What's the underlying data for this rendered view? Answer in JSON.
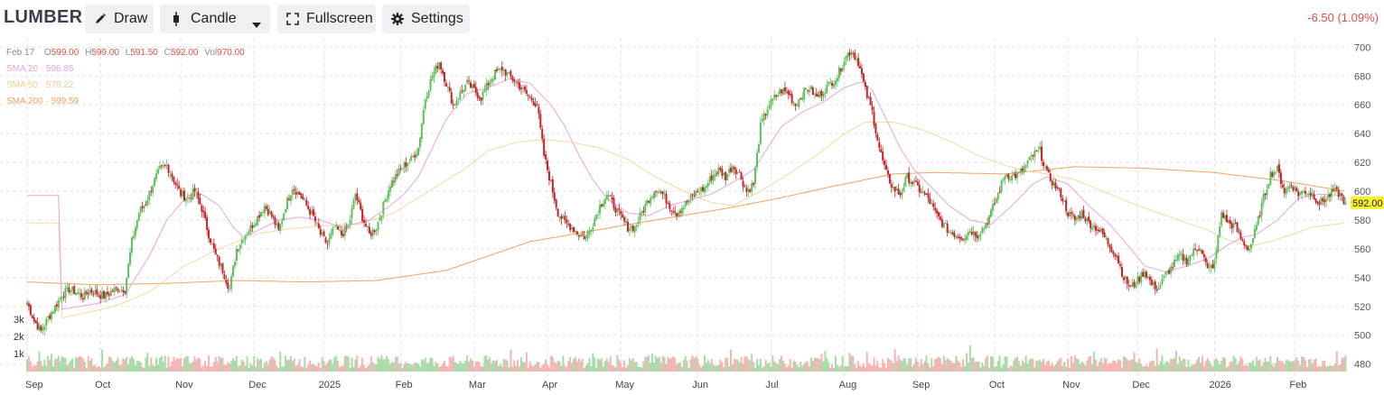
{
  "toolbar": {
    "symbol": "LUMBER",
    "draw_label": "Draw",
    "chart_type_label": "Candle",
    "fullscreen_label": "Fullscreen",
    "settings_label": "Settings",
    "change_text": "-6.50 (1.09%)"
  },
  "legend": {
    "date": "Feb 17",
    "o_key": "O",
    "o_val": "599.00",
    "h_key": "H",
    "h_val": "599.00",
    "l_key": "L",
    "l_val": "591.50",
    "c_key": "C",
    "c_val": "592.00",
    "vol_key": "Vol",
    "vol_val": "970.00",
    "sma20": "SMA 20 · 596.85",
    "sma50": "SMA 50 · 578.22",
    "sma200": "SMA 200 · 599.59"
  },
  "colors": {
    "up": "#5cc15c",
    "down": "#c3242c",
    "sma20": "#e8a6d8",
    "sma50": "#f3d9a0",
    "sma200": "#f4a261",
    "vol_up": "#a8dba8",
    "vol_down": "#f5b4b4",
    "last_price_bg": "#f7f12b"
  },
  "chart_data": {
    "type": "candlestick",
    "last_price_label": "592.00",
    "y_ticks": [
      480,
      500,
      520,
      540,
      560,
      580,
      600,
      620,
      640,
      660,
      680,
      700
    ],
    "ylim": [
      476,
      704
    ],
    "vol_ticks": [
      "1k",
      "2k",
      "3k"
    ],
    "x_tick_labels": [
      "Sep",
      "Oct",
      "Nov",
      "Dec",
      "2025",
      "Feb",
      "Mar",
      "Apr",
      "May",
      "Jun",
      "Jul",
      "Aug",
      "Sep",
      "Oct",
      "Nov",
      "Dec",
      "2026",
      "Feb"
    ],
    "grid": true,
    "series_legend": [
      "SMA 20",
      "SMA 50",
      "SMA 200"
    ],
    "close_anchors": [
      [
        0,
        523
      ],
      [
        4,
        510
      ],
      [
        8,
        503
      ],
      [
        12,
        512
      ],
      [
        16,
        520
      ],
      [
        20,
        528
      ],
      [
        24,
        532
      ],
      [
        28,
        530
      ],
      [
        32,
        527
      ],
      [
        36,
        531
      ],
      [
        40,
        529
      ],
      [
        44,
        527
      ],
      [
        48,
        530
      ],
      [
        52,
        533
      ],
      [
        56,
        532
      ],
      [
        60,
        565
      ],
      [
        64,
        585
      ],
      [
        68,
        592
      ],
      [
        72,
        605
      ],
      [
        76,
        615
      ],
      [
        80,
        618
      ],
      [
        84,
        608
      ],
      [
        88,
        598
      ],
      [
        92,
        595
      ],
      [
        96,
        600
      ],
      [
        100,
        588
      ],
      [
        104,
        570
      ],
      [
        108,
        555
      ],
      [
        112,
        545
      ],
      [
        116,
        532
      ],
      [
        120,
        560
      ],
      [
        124,
        568
      ],
      [
        128,
        575
      ],
      [
        132,
        582
      ],
      [
        136,
        590
      ],
      [
        140,
        583
      ],
      [
        144,
        572
      ],
      [
        148,
        590
      ],
      [
        152,
        603
      ],
      [
        156,
        598
      ],
      [
        160,
        590
      ],
      [
        164,
        582
      ],
      [
        168,
        570
      ],
      [
        172,
        563
      ],
      [
        176,
        575
      ],
      [
        180,
        570
      ],
      [
        184,
        575
      ],
      [
        188,
        598
      ],
      [
        192,
        582
      ],
      [
        196,
        570
      ],
      [
        200,
        575
      ],
      [
        204,
        590
      ],
      [
        208,
        605
      ],
      [
        212,
        612
      ],
      [
        216,
        618
      ],
      [
        220,
        622
      ],
      [
        224,
        630
      ],
      [
        228,
        665
      ],
      [
        232,
        680
      ],
      [
        236,
        690
      ],
      [
        240,
        675
      ],
      [
        244,
        660
      ],
      [
        248,
        668
      ],
      [
        252,
        675
      ],
      [
        256,
        670
      ],
      [
        260,
        665
      ],
      [
        264,
        675
      ],
      [
        268,
        682
      ],
      [
        272,
        685
      ],
      [
        276,
        680
      ],
      [
        280,
        676
      ],
      [
        284,
        670
      ],
      [
        288,
        665
      ],
      [
        292,
        660
      ],
      [
        296,
        625
      ],
      [
        300,
        605
      ],
      [
        304,
        585
      ],
      [
        308,
        578
      ],
      [
        312,
        575
      ],
      [
        316,
        570
      ],
      [
        320,
        568
      ],
      [
        324,
        578
      ],
      [
        328,
        590
      ],
      [
        332,
        598
      ],
      [
        336,
        590
      ],
      [
        340,
        582
      ],
      [
        344,
        575
      ],
      [
        348,
        575
      ],
      [
        352,
        585
      ],
      [
        356,
        595
      ],
      [
        360,
        602
      ],
      [
        364,
        598
      ],
      [
        368,
        590
      ],
      [
        372,
        585
      ],
      [
        376,
        590
      ],
      [
        380,
        595
      ],
      [
        384,
        600
      ],
      [
        388,
        602
      ],
      [
        392,
        610
      ],
      [
        396,
        615
      ],
      [
        400,
        610
      ],
      [
        404,
        618
      ],
      [
        408,
        612
      ],
      [
        412,
        600
      ],
      [
        416,
        605
      ],
      [
        420,
        645
      ],
      [
        424,
        658
      ],
      [
        428,
        665
      ],
      [
        432,
        670
      ],
      [
        436,
        668
      ],
      [
        440,
        660
      ],
      [
        444,
        668
      ],
      [
        448,
        672
      ],
      [
        452,
        665
      ],
      [
        456,
        670
      ],
      [
        460,
        675
      ],
      [
        464,
        680
      ],
      [
        468,
        692
      ],
      [
        472,
        698
      ],
      [
        476,
        690
      ],
      [
        480,
        670
      ],
      [
        484,
        655
      ],
      [
        488,
        630
      ],
      [
        492,
        612
      ],
      [
        496,
        602
      ],
      [
        500,
        598
      ],
      [
        504,
        610
      ],
      [
        508,
        605
      ],
      [
        512,
        600
      ],
      [
        516,
        595
      ],
      [
        520,
        585
      ],
      [
        524,
        578
      ],
      [
        528,
        572
      ],
      [
        532,
        570
      ],
      [
        536,
        568
      ],
      [
        540,
        573
      ],
      [
        544,
        570
      ],
      [
        548,
        575
      ],
      [
        552,
        585
      ],
      [
        556,
        598
      ],
      [
        560,
        612
      ],
      [
        564,
        610
      ],
      [
        568,
        612
      ],
      [
        572,
        618
      ],
      [
        576,
        625
      ],
      [
        580,
        628
      ],
      [
        584,
        612
      ],
      [
        588,
        605
      ],
      [
        592,
        598
      ],
      [
        596,
        585
      ],
      [
        600,
        580
      ],
      [
        604,
        585
      ],
      [
        608,
        578
      ],
      [
        612,
        575
      ],
      [
        616,
        570
      ],
      [
        620,
        562
      ],
      [
        624,
        555
      ],
      [
        628,
        540
      ],
      [
        632,
        533
      ],
      [
        636,
        538
      ],
      [
        640,
        545
      ],
      [
        644,
        535
      ],
      [
        648,
        533
      ],
      [
        652,
        542
      ],
      [
        656,
        548
      ],
      [
        660,
        555
      ],
      [
        664,
        552
      ],
      [
        668,
        558
      ],
      [
        672,
        562
      ],
      [
        676,
        545
      ],
      [
        680,
        550
      ],
      [
        684,
        585
      ],
      [
        688,
        578
      ],
      [
        692,
        575
      ],
      [
        696,
        565
      ],
      [
        700,
        560
      ],
      [
        704,
        575
      ],
      [
        708,
        595
      ],
      [
        712,
        612
      ],
      [
        716,
        615
      ],
      [
        720,
        600
      ],
      [
        724,
        605
      ],
      [
        728,
        598
      ],
      [
        732,
        600
      ],
      [
        736,
        598
      ],
      [
        740,
        592
      ],
      [
        744,
        595
      ],
      [
        748,
        600
      ],
      [
        752,
        598
      ],
      [
        755,
        592
      ]
    ],
    "sma20_anchors": [
      [
        20,
        518
      ],
      [
        40,
        522
      ],
      [
        56,
        528
      ],
      [
        70,
        555
      ],
      [
        80,
        580
      ],
      [
        92,
        597
      ],
      [
        100,
        598
      ],
      [
        110,
        590
      ],
      [
        118,
        575
      ],
      [
        124,
        568
      ],
      [
        136,
        575
      ],
      [
        144,
        580
      ],
      [
        156,
        582
      ],
      [
        168,
        580
      ],
      [
        180,
        575
      ],
      [
        196,
        580
      ],
      [
        208,
        590
      ],
      [
        216,
        598
      ],
      [
        224,
        610
      ],
      [
        232,
        630
      ],
      [
        240,
        650
      ],
      [
        252,
        668
      ],
      [
        264,
        672
      ],
      [
        276,
        678
      ],
      [
        288,
        675
      ],
      [
        300,
        660
      ],
      [
        308,
        645
      ],
      [
        316,
        625
      ],
      [
        324,
        608
      ],
      [
        332,
        595
      ],
      [
        344,
        585
      ],
      [
        356,
        583
      ],
      [
        368,
        590
      ],
      [
        380,
        594
      ],
      [
        392,
        598
      ],
      [
        404,
        606
      ],
      [
        416,
        615
      ],
      [
        424,
        630
      ],
      [
        432,
        645
      ],
      [
        444,
        655
      ],
      [
        456,
        662
      ],
      [
        468,
        672
      ],
      [
        478,
        676
      ],
      [
        484,
        670
      ],
      [
        492,
        650
      ],
      [
        500,
        630
      ],
      [
        508,
        615
      ],
      [
        516,
        605
      ],
      [
        528,
        590
      ],
      [
        540,
        580
      ],
      [
        552,
        577
      ],
      [
        564,
        590
      ],
      [
        576,
        605
      ],
      [
        584,
        610
      ],
      [
        596,
        605
      ],
      [
        608,
        590
      ],
      [
        620,
        577
      ],
      [
        632,
        560
      ],
      [
        640,
        548
      ],
      [
        652,
        544
      ],
      [
        664,
        548
      ],
      [
        676,
        553
      ],
      [
        688,
        563
      ],
      [
        696,
        568
      ],
      [
        704,
        570
      ],
      [
        716,
        580
      ],
      [
        728,
        595
      ],
      [
        740,
        598
      ],
      [
        755,
        597
      ]
    ],
    "sma50_anchors": [
      [
        20,
        512
      ],
      [
        50,
        520
      ],
      [
        70,
        530
      ],
      [
        90,
        548
      ],
      [
        110,
        560
      ],
      [
        130,
        570
      ],
      [
        150,
        574
      ],
      [
        170,
        576
      ],
      [
        190,
        577
      ],
      [
        210,
        585
      ],
      [
        230,
        600
      ],
      [
        250,
        615
      ],
      [
        264,
        628
      ],
      [
        280,
        634
      ],
      [
        296,
        636
      ],
      [
        312,
        634
      ],
      [
        328,
        630
      ],
      [
        344,
        622
      ],
      [
        360,
        610
      ],
      [
        376,
        600
      ],
      [
        392,
        592
      ],
      [
        404,
        590
      ],
      [
        420,
        600
      ],
      [
        436,
        612
      ],
      [
        452,
        625
      ],
      [
        468,
        640
      ],
      [
        480,
        648
      ],
      [
        496,
        648
      ],
      [
        512,
        643
      ],
      [
        528,
        635
      ],
      [
        544,
        625
      ],
      [
        560,
        618
      ],
      [
        572,
        614
      ],
      [
        584,
        612
      ],
      [
        600,
        608
      ],
      [
        616,
        600
      ],
      [
        632,
        592
      ],
      [
        648,
        585
      ],
      [
        664,
        578
      ],
      [
        676,
        573
      ],
      [
        688,
        566
      ],
      [
        700,
        562
      ],
      [
        712,
        565
      ],
      [
        724,
        570
      ],
      [
        736,
        575
      ],
      [
        755,
        578
      ]
    ],
    "sma200_anchors": [
      [
        0,
        537
      ],
      [
        40,
        535
      ],
      [
        80,
        536
      ],
      [
        120,
        538
      ],
      [
        160,
        537
      ],
      [
        200,
        538
      ],
      [
        240,
        545
      ],
      [
        264,
        555
      ],
      [
        288,
        565
      ],
      [
        312,
        570
      ],
      [
        340,
        576
      ],
      [
        370,
        582
      ],
      [
        400,
        588
      ],
      [
        430,
        595
      ],
      [
        460,
        603
      ],
      [
        480,
        608
      ],
      [
        496,
        612
      ],
      [
        520,
        613
      ],
      [
        560,
        612
      ],
      [
        600,
        617
      ],
      [
        640,
        616
      ],
      [
        680,
        613
      ],
      [
        720,
        607
      ],
      [
        755,
        600
      ]
    ]
  }
}
